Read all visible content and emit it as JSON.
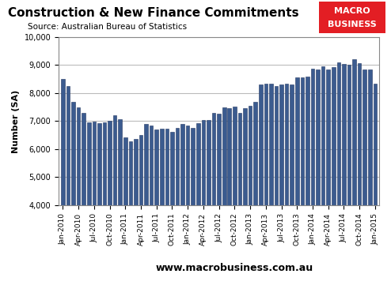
{
  "chart_data": {
    "type": "bar",
    "title": "Construction & New Finance Commitments",
    "subtitle": "Source: Australian Bureau of Statistics",
    "y_label": "Number (SA)",
    "annotations": [
      "MACRO",
      "BUSINESS",
      "www.macrobusiness.com.au"
    ],
    "categories": [
      "Jan-2010",
      null,
      null,
      "Apr-2010",
      null,
      null,
      "Jul-2010",
      null,
      null,
      "Oct-2010",
      null,
      null,
      "Jan-2011",
      null,
      null,
      "Apr-2011",
      null,
      null,
      "Jul-2011",
      null,
      null,
      "Oct-2011",
      null,
      null,
      "Jan-2012",
      null,
      null,
      "Apr-2012",
      null,
      null,
      "Jul-2012",
      null,
      null,
      "Oct-2012",
      null,
      null,
      "Jan-2013",
      null,
      null,
      "Apr-2013",
      null,
      null,
      "Jul-2013",
      null,
      null,
      "Oct-2013",
      null,
      null,
      "Jan-2014",
      null,
      null,
      "Apr-2014",
      null,
      null,
      "Jul-2014",
      null,
      null,
      "Oct-2014",
      null,
      null,
      "Jan-2015"
    ],
    "values": [
      8500,
      8250,
      7700,
      7480,
      7300,
      6950,
      6980,
      6920,
      6950,
      7000,
      7200,
      7060,
      6430,
      6270,
      6360,
      6500,
      6900,
      6830,
      6700,
      6730,
      6720,
      6620,
      6750,
      6900,
      6850,
      6750,
      6920,
      7030,
      7050,
      7300,
      7270,
      7480,
      7450,
      7520,
      7300,
      7450,
      7550,
      7700,
      8300,
      8330,
      8330,
      8250,
      8300,
      8330,
      8300,
      8550,
      8550,
      8600,
      8870,
      8850,
      8950,
      8850,
      8920,
      9100,
      9050,
      9000,
      9200,
      9070,
      8850,
      8850,
      8350
    ],
    "color": "#3b5b8f",
    "ylim": [
      4000,
      10000
    ],
    "yticks": [
      {
        "value": 4000,
        "label": "4,000"
      },
      {
        "value": 5000,
        "label": "5,000"
      },
      {
        "value": 6000,
        "label": "6,000"
      },
      {
        "value": 7000,
        "label": "7,000"
      },
      {
        "value": 8000,
        "label": "8,000"
      },
      {
        "value": 9000,
        "label": "9,000"
      },
      {
        "value": 10000,
        "label": "10,000"
      }
    ],
    "grid": true
  }
}
